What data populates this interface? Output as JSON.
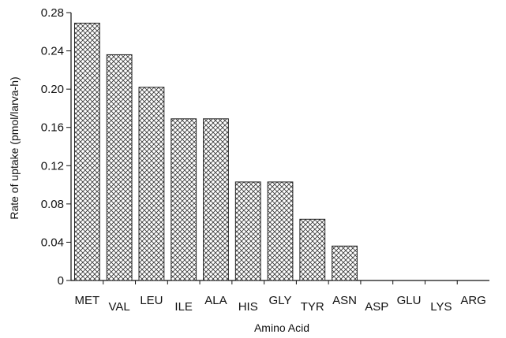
{
  "chart_data": {
    "type": "bar",
    "title": "",
    "xlabel": "Amino Acid",
    "ylabel": "Rate of uptake (pmol/larva-h)",
    "ylim": [
      0,
      0.28
    ],
    "yticks": [
      "0",
      "0.04",
      "0.08",
      "0.12",
      "0.16",
      "0.20",
      "0.24",
      "0.28"
    ],
    "categories": [
      "MET",
      "VAL",
      "LEU",
      "ILE",
      "ALA",
      "HIS",
      "GLY",
      "TYR",
      "ASN",
      "ASP",
      "GLU",
      "LYS",
      "ARG"
    ],
    "values": [
      0.269,
      0.236,
      0.202,
      0.169,
      0.169,
      0.103,
      0.103,
      0.064,
      0.036,
      0,
      0,
      0,
      0
    ],
    "bar_pattern": "crosshatch",
    "grid": false,
    "legend": "none"
  }
}
